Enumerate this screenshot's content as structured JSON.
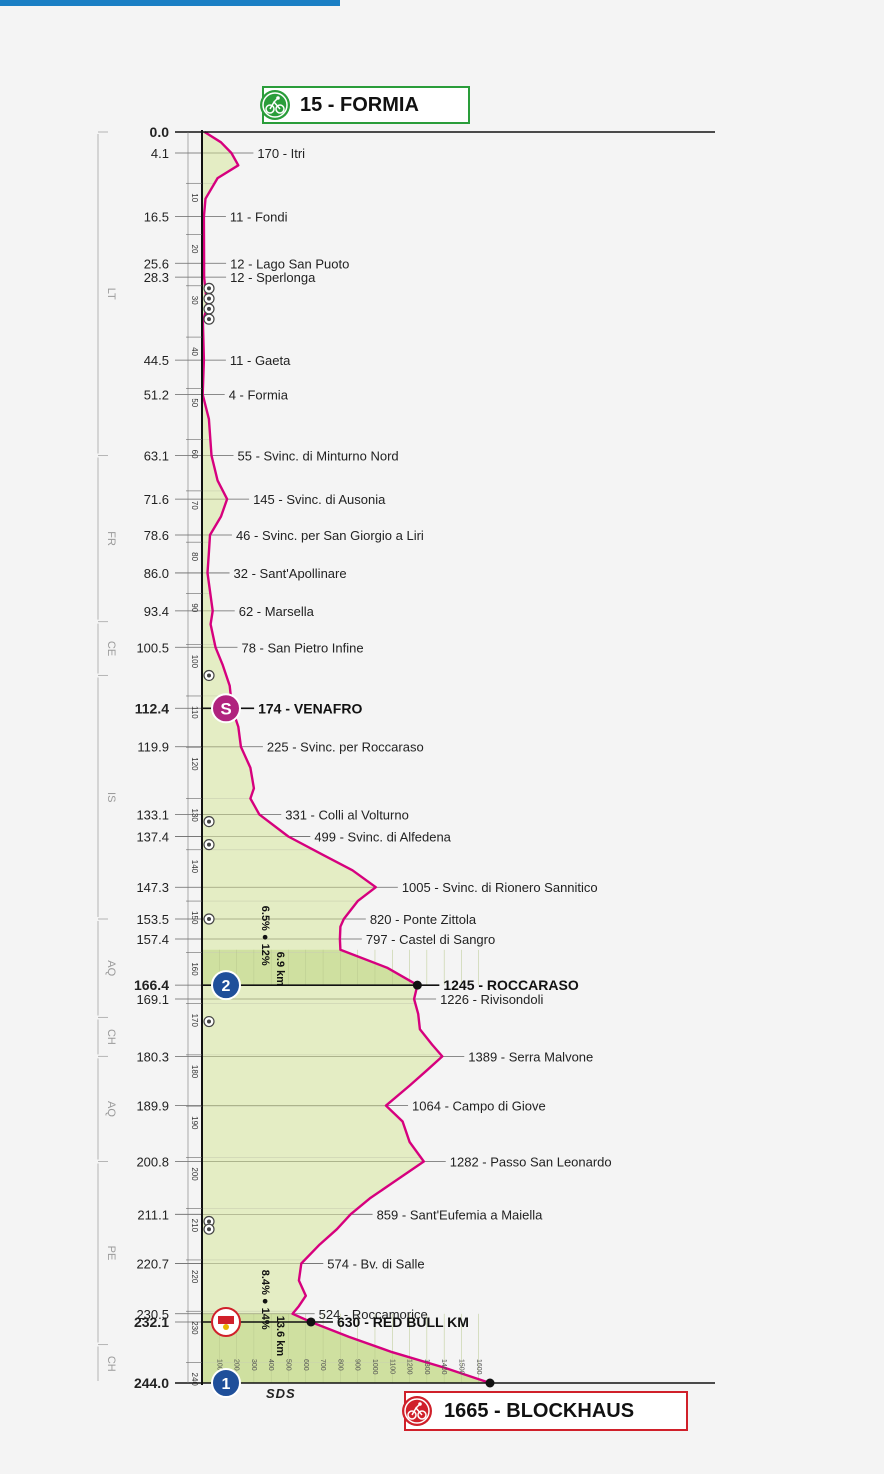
{
  "start": {
    "altitude": 15,
    "name": "FORMIA",
    "label": "15 - FORMIA"
  },
  "finish": {
    "altitude": 1665,
    "name": "BLOCKHAUS",
    "label": "1665 - BLOCKHAUS"
  },
  "brand": "SDS",
  "colors": {
    "profile_line": "#d6007e",
    "fill": "#e4edc4",
    "fill_climb": "#cfe0a0",
    "start_border": "#2a9d3a",
    "finish_border": "#d0202a",
    "sprint": "#b0237e",
    "kom": "#1f4f9a"
  },
  "regions": [
    {
      "code": "LT",
      "km_from": 0,
      "km_to": 63.1
    },
    {
      "code": "FR",
      "km_from": 63.1,
      "km_to": 95.5
    },
    {
      "code": "CE",
      "km_from": 95.5,
      "km_to": 106
    },
    {
      "code": "IS",
      "km_from": 106,
      "km_to": 153.5
    },
    {
      "code": "AQ",
      "km_from": 153.5,
      "km_to": 172.7
    },
    {
      "code": "CH",
      "km_from": 172.7,
      "km_to": 180.3
    },
    {
      "code": "AQ",
      "km_from": 180.3,
      "km_to": 200.8
    },
    {
      "code": "PE",
      "km_from": 200.8,
      "km_to": 236.5
    },
    {
      "code": "CH",
      "km_from": 236.5,
      "km_to": 244
    }
  ],
  "climbs": [
    {
      "name": "ROCCARASO",
      "length": "6.9 km",
      "avg": "6.5%",
      "max": "12%",
      "km_from": 159.5,
      "km_to": 166.4
    },
    {
      "name": "BLOCKHAUS",
      "length": "13.6 km",
      "avg": "8.4%",
      "max": "14%",
      "km_from": 230.5,
      "km_to": 244
    }
  ],
  "chart_data": {
    "type": "line",
    "orientation": "vertical",
    "title": "",
    "xlabel": "",
    "ylabel": "",
    "x_label": "",
    "y_label": "",
    "distance_range": [
      0,
      244
    ],
    "altitude_range": [
      0,
      1800
    ],
    "distance_ticks": [
      10,
      20,
      30,
      40,
      50,
      60,
      70,
      80,
      90,
      100,
      110,
      120,
      130,
      140,
      150,
      160,
      170,
      180,
      190,
      200,
      210,
      220,
      230,
      240
    ],
    "altitude_ticks": [
      100,
      200,
      300,
      400,
      500,
      600,
      700,
      800,
      900,
      1000,
      1100,
      1200,
      1300,
      1400,
      1500,
      1600
    ],
    "waypoints": [
      {
        "km": "0.0",
        "altitude": 15,
        "name": "",
        "label": ""
      },
      {
        "km": "4.1",
        "altitude": 170,
        "name": "Itri",
        "label": "170 - Itri"
      },
      {
        "km": "16.5",
        "altitude": 11,
        "name": "Fondi",
        "label": "11 - Fondi"
      },
      {
        "km": "25.6",
        "altitude": 12,
        "name": "Lago San Puoto",
        "label": "12 - Lago San Puoto"
      },
      {
        "km": "28.3",
        "altitude": 12,
        "name": "Sperlonga",
        "label": "12 - Sperlonga"
      },
      {
        "km": "44.5",
        "altitude": 11,
        "name": "Gaeta",
        "label": "11 - Gaeta"
      },
      {
        "km": "51.2",
        "altitude": 4,
        "name": "Formia",
        "label": "4 - Formia"
      },
      {
        "km": "63.1",
        "altitude": 55,
        "name": "Svinc. di Minturno Nord",
        "label": "55 - Svinc. di Minturno Nord"
      },
      {
        "km": "71.6",
        "altitude": 145,
        "name": "Svinc. di Ausonia",
        "label": "145 - Svinc. di Ausonia"
      },
      {
        "km": "78.6",
        "altitude": 46,
        "name": "Svinc. per San Giorgio a Liri",
        "label": "46 - Svinc. per San Giorgio a Liri"
      },
      {
        "km": "86.0",
        "altitude": 32,
        "name": "Sant'Apollinare",
        "label": "32 - Sant'Apollinare"
      },
      {
        "km": "93.4",
        "altitude": 62,
        "name": "Marsella",
        "label": "62 - Marsella"
      },
      {
        "km": "100.5",
        "altitude": 78,
        "name": "San Pietro Infine",
        "label": "78 - San Pietro Infine"
      },
      {
        "km": "112.4",
        "altitude": 174,
        "name": "VENAFRO",
        "label": "174 - VENAFRO",
        "bold": true,
        "marker": "sprint"
      },
      {
        "km": "119.9",
        "altitude": 225,
        "name": "Svinc. per Roccaraso",
        "label": "225 - Svinc. per Roccaraso"
      },
      {
        "km": "133.1",
        "altitude": 331,
        "name": "Colli al Volturno",
        "label": "331 - Colli al Volturno"
      },
      {
        "km": "137.4",
        "altitude": 499,
        "name": "Svinc. di Alfedena",
        "label": "499 - Svinc. di Alfedena"
      },
      {
        "km": "147.3",
        "altitude": 1005,
        "name": "Svinc. di Rionero Sannitico",
        "label": "1005 - Svinc. di Rionero Sannitico"
      },
      {
        "km": "153.5",
        "altitude": 820,
        "name": "Ponte Zittola",
        "label": "820 - Ponte Zittola"
      },
      {
        "km": "157.4",
        "altitude": 797,
        "name": "Castel di Sangro",
        "label": "797 - Castel di Sangro"
      },
      {
        "km": "166.4",
        "altitude": 1245,
        "name": "ROCCARASO",
        "label": "1245 - ROCCARASO",
        "bold": true,
        "marker": "kom",
        "kom_cat": "2"
      },
      {
        "km": "169.1",
        "altitude": 1226,
        "name": "Rivisondoli",
        "label": "1226 - Rivisondoli"
      },
      {
        "km": "180.3",
        "altitude": 1389,
        "name": "Serra Malvone",
        "label": "1389 - Serra Malvone"
      },
      {
        "km": "189.9",
        "altitude": 1064,
        "name": "Campo di Giove",
        "label": "1064 - Campo di Giove"
      },
      {
        "km": "200.8",
        "altitude": 1282,
        "name": "Passo San Leonardo",
        "label": "1282 - Passo San Leonardo"
      },
      {
        "km": "211.1",
        "altitude": 859,
        "name": "Sant'Eufemia a Maiella",
        "label": "859 - Sant'Eufemia a Maiella"
      },
      {
        "km": "220.7",
        "altitude": 574,
        "name": "Bv. di Salle",
        "label": "574 - Bv. di Salle"
      },
      {
        "km": "230.5",
        "altitude": 524,
        "name": "Roccamorice",
        "label": "524 - Roccamorice"
      },
      {
        "km": "232.1",
        "altitude": 630,
        "name": "RED BULL KM",
        "label": "630 - RED BULL KM",
        "bold": true,
        "marker": "redbull"
      },
      {
        "km": "244.0",
        "altitude": 1665,
        "name": "",
        "label": "",
        "marker": "kom",
        "kom_cat": "1"
      }
    ],
    "intermediate_profile": [
      {
        "km": 2,
        "altitude": 110
      },
      {
        "km": 6.5,
        "altitude": 210
      },
      {
        "km": 9,
        "altitude": 90
      },
      {
        "km": 13,
        "altitude": 20
      },
      {
        "km": 34,
        "altitude": 30
      },
      {
        "km": 37,
        "altitude": 5
      },
      {
        "km": 56,
        "altitude": 40
      },
      {
        "km": 68,
        "altitude": 90
      },
      {
        "km": 75,
        "altitude": 110
      },
      {
        "km": 82,
        "altitude": 40
      },
      {
        "km": 96,
        "altitude": 50
      },
      {
        "km": 104,
        "altitude": 120
      },
      {
        "km": 108,
        "altitude": 160
      },
      {
        "km": 116,
        "altitude": 210
      },
      {
        "km": 124,
        "altitude": 280
      },
      {
        "km": 128,
        "altitude": 300
      },
      {
        "km": 130,
        "altitude": 280
      },
      {
        "km": 141,
        "altitude": 700
      },
      {
        "km": 144,
        "altitude": 870
      },
      {
        "km": 150,
        "altitude": 900
      },
      {
        "km": 155,
        "altitude": 800
      },
      {
        "km": 159.5,
        "altitude": 800
      },
      {
        "km": 163,
        "altitude": 1070
      },
      {
        "km": 172,
        "altitude": 1250
      },
      {
        "km": 175,
        "altitude": 1260
      },
      {
        "km": 178,
        "altitude": 1330
      },
      {
        "km": 183,
        "altitude": 1300
      },
      {
        "km": 186,
        "altitude": 1200
      },
      {
        "km": 193,
        "altitude": 1160
      },
      {
        "km": 195,
        "altitude": 1180
      },
      {
        "km": 197,
        "altitude": 1200
      },
      {
        "km": 205,
        "altitude": 1100
      },
      {
        "km": 208,
        "altitude": 970
      },
      {
        "km": 214,
        "altitude": 780
      },
      {
        "km": 217,
        "altitude": 680
      },
      {
        "km": 224,
        "altitude": 560
      },
      {
        "km": 227,
        "altitude": 600
      },
      {
        "km": 229,
        "altitude": 560
      },
      {
        "km": 235,
        "altitude": 850
      },
      {
        "km": 238,
        "altitude": 1100
      },
      {
        "km": 241,
        "altitude": 1400
      }
    ],
    "grid": true,
    "legend": "none"
  }
}
